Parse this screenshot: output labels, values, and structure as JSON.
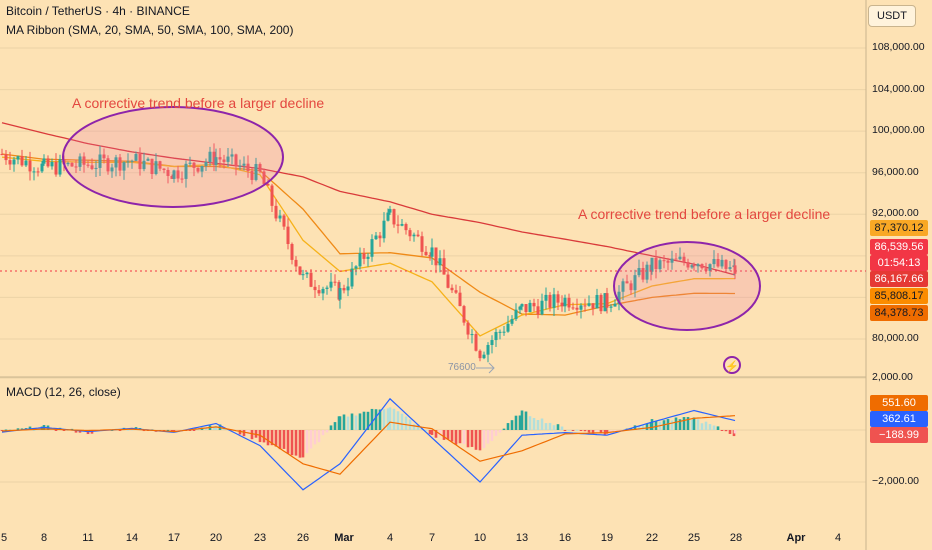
{
  "header": {
    "title": "Bitcoin / TetherUS · 4h · BINANCE",
    "ribbon": "MA Ribbon (SMA, 20, SMA, 50, SMA, 100, SMA, 200)",
    "macd": "MACD (12, 26, close)"
  },
  "toolbar": {
    "currency": "USDT"
  },
  "annotations": {
    "left_note": "A corrective trend before a larger decline",
    "right_note": "A corrective trend before a larger decline",
    "low_label": "76600"
  },
  "price_tags": [
    {
      "text": "87,370.12",
      "color": "#f9a825",
      "text_color": "#131722"
    },
    {
      "text": "86,539.56",
      "color": "#f23645",
      "text_color": "#ffffff"
    },
    {
      "text": "01:54:13",
      "color": "#f23645",
      "text_color": "#ffffff"
    },
    {
      "text": "86,167.66",
      "color": "#e53935",
      "text_color": "#ffffff"
    },
    {
      "text": "85,808.17",
      "color": "#fb8c00",
      "text_color": "#131722"
    },
    {
      "text": "84,378.73",
      "color": "#ef6c00",
      "text_color": "#131722"
    }
  ],
  "macd_tags": [
    {
      "text": "551.60",
      "color": "#ef6c00"
    },
    {
      "text": "362.61",
      "color": "#2962ff"
    },
    {
      "text": "−188.99",
      "color": "#ef5350"
    }
  ],
  "y_ticks": [
    "108,000.00",
    "104,000.00",
    "100,000.00",
    "96,000.00",
    "92,000.00",
    "80,000.00"
  ],
  "macd_ticks": [
    "2,000.00",
    "−2,000.00"
  ],
  "x_ticks": [
    "5",
    "8",
    "11",
    "14",
    "17",
    "20",
    "23",
    "26",
    "Mar",
    "4",
    "7",
    "10",
    "13",
    "16",
    "19",
    "22",
    "25",
    "28",
    "Apr",
    "4"
  ],
  "chart_data": [
    {
      "type": "line",
      "title": "Bitcoin / TetherUS · 4h · BINANCE",
      "x": [
        "Feb 5",
        "Feb 8",
        "Feb 11",
        "Feb 14",
        "Feb 17",
        "Feb 20",
        "Feb 23",
        "Feb 26",
        "Mar 1",
        "Mar 4",
        "Mar 7",
        "Mar 10",
        "Mar 13",
        "Mar 16",
        "Mar 19",
        "Mar 22",
        "Mar 25",
        "Mar 27"
      ],
      "series": [
        {
          "values": [
            97800,
            96500,
            96800,
            97200,
            96000,
            97500,
            95800,
            85800,
            84500,
            91800,
            88500,
            78800,
            82900,
            83800,
            83500,
            87000,
            87600,
            86540
          ]
        }
      ],
      "ma_series": [
        {
          "values": [
            100800,
            99800,
            98800,
            98000,
            97400,
            96900,
            96400,
            95600,
            94200,
            93200,
            92000,
            91200,
            90300,
            89600,
            88900,
            88000,
            87200,
            86170
          ]
        },
        {
          "values": [
            97800,
            97300,
            97200,
            97100,
            96600,
            96600,
            96200,
            92500,
            88200,
            88300,
            87800,
            84500,
            82400,
            82300,
            83200,
            84000,
            84400,
            84380
          ]
        },
        {
          "values": [
            97500,
            97100,
            97000,
            97000,
            96600,
            96800,
            95800,
            89500,
            86500,
            87300,
            85500,
            80300,
            82300,
            83300,
            83400,
            85100,
            85800,
            85810
          ]
        }
      ],
      "ylim": [
        76000,
        111000
      ],
      "current_price": 86539.56,
      "low": 76600
    },
    {
      "type": "bar",
      "title": "MACD (12, 26, close)",
      "x": [
        "Feb 5",
        "Feb 8",
        "Feb 11",
        "Feb 14",
        "Feb 17",
        "Feb 20",
        "Feb 23",
        "Feb 26",
        "Mar 1",
        "Mar 4",
        "Mar 7",
        "Mar 10",
        "Mar 13",
        "Mar 16",
        "Mar 19",
        "Mar 22",
        "Mar 25",
        "Mar 27"
      ],
      "histogram": [
        -60,
        120,
        -100,
        80,
        -80,
        200,
        -400,
        -1100,
        500,
        900,
        -200,
        -800,
        700,
        50,
        -150,
        350,
        450,
        -188.99
      ],
      "series": [
        {
          "values": [
            -80,
            100,
            -60,
            60,
            -90,
            250,
            -600,
            -2300,
            -1300,
            1200,
            -300,
            -2000,
            -200,
            -100,
            -200,
            300,
            750,
            362.61
          ]
        },
        {
          "values": [
            -40,
            40,
            -20,
            30,
            -60,
            120,
            -200,
            -1300,
            -1700,
            300,
            50,
            -1200,
            -800,
            -150,
            -100,
            100,
            450,
            551.6
          ]
        }
      ],
      "ylim": [
        -3200,
        2600
      ]
    }
  ]
}
